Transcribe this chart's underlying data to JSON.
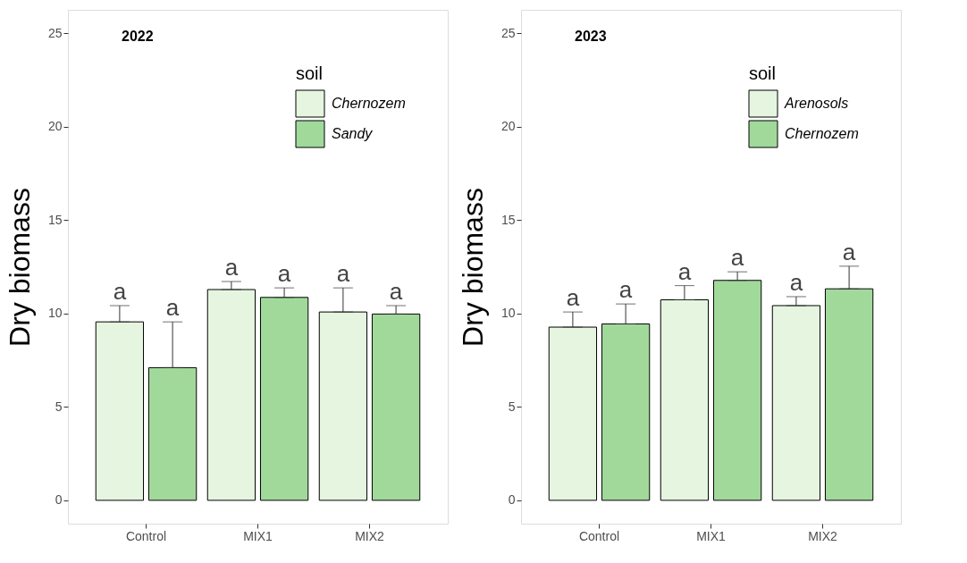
{
  "chart_data": [
    {
      "type": "bar",
      "title": "2022",
      "ylabel": "Dry biomass",
      "legend_title": "soil",
      "legend": "top right",
      "grid": false,
      "categories": [
        "Control",
        "MIX1",
        "MIX2"
      ],
      "ylim": [
        -1.25,
        26.25
      ],
      "yticks": [
        0,
        5,
        10,
        15,
        20,
        25
      ],
      "series": [
        {
          "name": "Chernozem",
          "color": "#e5f5e0",
          "values": [
            9.55,
            11.28,
            10.08
          ],
          "errors": [
            [
              9.55,
              10.42
            ],
            [
              11.28,
              11.71
            ],
            [
              10.08,
              11.37
            ]
          ],
          "value_labels": [
            "a",
            "a",
            "a"
          ]
        },
        {
          "name": "Sandy",
          "color": "#a1d99b",
          "values": [
            7.1,
            10.86,
            9.97
          ],
          "errors": [
            [
              7.1,
              9.55
            ],
            [
              10.86,
              11.37
            ],
            [
              9.97,
              10.42
            ]
          ],
          "value_labels": [
            "a",
            "a",
            "a"
          ]
        }
      ]
    },
    {
      "type": "bar",
      "title": "2023",
      "ylabel": "Dry biomass",
      "legend_title": "soil",
      "legend": "top right",
      "grid": false,
      "categories": [
        "Control",
        "MIX1",
        "MIX2"
      ],
      "ylim": [
        -1.25,
        26.25
      ],
      "yticks": [
        0,
        5,
        10,
        15,
        20,
        25
      ],
      "series": [
        {
          "name": "Arenosols",
          "color": "#e5f5e0",
          "values": [
            9.27,
            10.73,
            10.42
          ],
          "errors": [
            [
              9.27,
              10.08
            ],
            [
              10.73,
              11.49
            ],
            [
              10.42,
              10.9
            ]
          ],
          "value_labels": [
            "a",
            "a",
            "a"
          ]
        },
        {
          "name": "Chernozem",
          "color": "#a1d99b",
          "values": [
            9.44,
            11.77,
            11.32
          ],
          "errors": [
            [
              9.44,
              10.51
            ],
            [
              11.77,
              12.23
            ],
            [
              11.32,
              12.53
            ]
          ],
          "value_labels": [
            "a",
            "a",
            "a"
          ]
        }
      ]
    }
  ]
}
